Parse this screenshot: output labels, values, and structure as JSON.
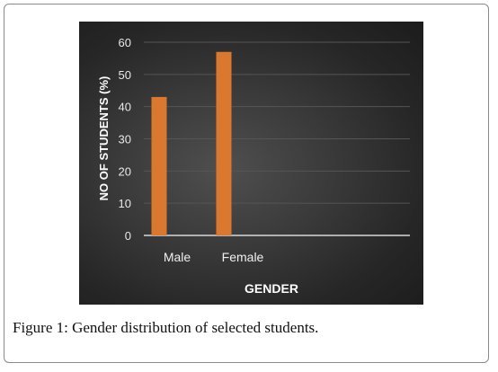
{
  "chart_data": {
    "type": "bar",
    "categories": [
      "Male",
      "Female"
    ],
    "values": [
      43,
      57
    ],
    "xlabel": "GENDER",
    "ylabel": "NO OF STUDENTS (%)",
    "ylim": [
      0,
      60
    ],
    "yticks": [
      0,
      10,
      20,
      30,
      40,
      50,
      60
    ],
    "grid": true,
    "bar_color": "#d9782e",
    "background": "#2e2e2e"
  },
  "caption": {
    "label": "Figure 1:",
    "text": " Gender distribution of selected students."
  }
}
